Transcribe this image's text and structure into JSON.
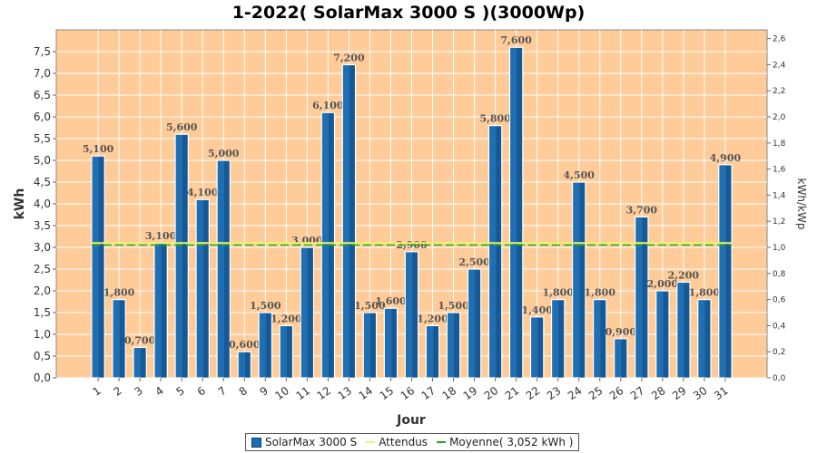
{
  "chart_data": {
    "type": "bar",
    "title": "1-2022( SolarMax 3000 S )(3000Wp)",
    "xlabel": "Jour",
    "ylabel": "kWh",
    "y2label": "kWh/kWp",
    "ylim": [
      0,
      8.0
    ],
    "y2lim": [
      0,
      2.6667
    ],
    "yticks": [
      "0,0",
      "0,5",
      "1,0",
      "1,5",
      "2,0",
      "2,5",
      "3,0",
      "3,5",
      "4,0",
      "4,5",
      "5,0",
      "5,5",
      "6,0",
      "6,5",
      "7,0",
      "7,5"
    ],
    "y2ticks": [
      "0,0",
      "0,2",
      "0,4",
      "0,6",
      "0,8",
      "1,0",
      "1,2",
      "1,4",
      "1,6",
      "1,8",
      "2,0",
      "2,2",
      "2,4",
      "2,6"
    ],
    "categories": [
      "1",
      "2",
      "3",
      "4",
      "5",
      "6",
      "7",
      "8",
      "9",
      "10",
      "11",
      "12",
      "13",
      "14",
      "15",
      "16",
      "17",
      "18",
      "19",
      "20",
      "21",
      "22",
      "23",
      "24",
      "25",
      "26",
      "27",
      "28",
      "29",
      "30",
      "31"
    ],
    "series": [
      {
        "name": "SolarMax 3000 S",
        "values": [
          5.1,
          1.8,
          0.7,
          3.1,
          5.6,
          4.1,
          5.0,
          0.6,
          1.5,
          1.2,
          3.0,
          6.1,
          7.2,
          1.5,
          1.6,
          2.9,
          1.2,
          1.5,
          2.5,
          5.8,
          7.6,
          1.4,
          1.8,
          4.5,
          1.8,
          0.9,
          3.7,
          2.0,
          2.2,
          1.8,
          4.9
        ],
        "labels": [
          "5,100",
          "1,800",
          "0,700",
          "3,100",
          "5,600",
          "4,100",
          "5,000",
          "0,600",
          "1,500",
          "1,200",
          "3,000",
          "6,100",
          "7,200",
          "1,500",
          "1,600",
          "2,900",
          "1,200",
          "1,500",
          "2,500",
          "5,800",
          "7,600",
          "1,400",
          "1,800",
          "4,500",
          "1,800",
          "0,900",
          "3,700",
          "2,000",
          "2,200",
          "1,800",
          "4,900"
        ]
      }
    ],
    "expected_value": 3.1,
    "average_value": 3.052,
    "grid": true,
    "legend_position": "bottom",
    "colors": {
      "plot_background": "#FFCC99",
      "bar": "#1F6FB2",
      "bar_dark": "#0A3F6E",
      "expected_line": "#F2F26A",
      "average_line": "#22AA22",
      "gridline": "#FFFFFF"
    },
    "legend": [
      {
        "label": "SolarMax 3000 S",
        "kind": "box"
      },
      {
        "label": "Attendus",
        "kind": "line-expected"
      },
      {
        "label": "Moyenne( 3,052 kWh )",
        "kind": "line-average"
      }
    ]
  }
}
